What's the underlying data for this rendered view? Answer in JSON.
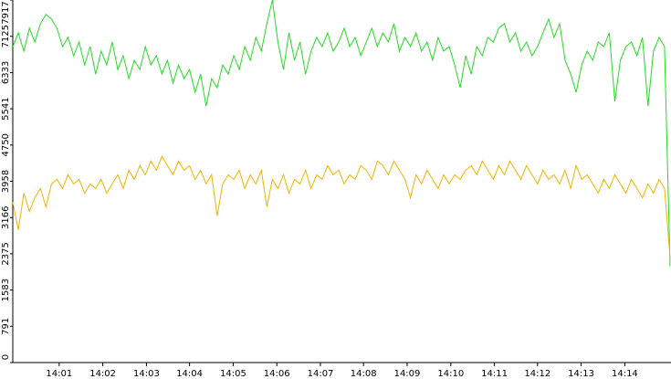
{
  "chart_data": {
    "type": "line",
    "xlim": [
      0,
      119
    ],
    "xticks": [
      {
        "value": 8.4,
        "label": "14:01"
      },
      {
        "value": 16.3,
        "label": "14:02"
      },
      {
        "value": 24.2,
        "label": "14:03"
      },
      {
        "value": 32.0,
        "label": "14:04"
      },
      {
        "value": 39.9,
        "label": "14:05"
      },
      {
        "value": 47.8,
        "label": "14:06"
      },
      {
        "value": 55.7,
        "label": "14:07"
      },
      {
        "value": 63.5,
        "label": "14:08"
      },
      {
        "value": 71.4,
        "label": "14:09"
      },
      {
        "value": 79.3,
        "label": "14:10"
      },
      {
        "value": 87.2,
        "label": "14:11"
      },
      {
        "value": 95.0,
        "label": "14:12"
      },
      {
        "value": 102.9,
        "label": "14:13"
      },
      {
        "value": 110.8,
        "label": "14:14"
      }
    ],
    "ylim": [
      0,
      7917
    ],
    "yticks": [
      0,
      791,
      1583,
      2375,
      3166,
      3958,
      4750,
      5541,
      6333,
      7125,
      7917
    ],
    "series": [
      {
        "color": "#22dd22",
        "values": [
          6900,
          7200,
          6800,
          7300,
          7000,
          7400,
          7600,
          7500,
          7300,
          6900,
          7100,
          6700,
          7000,
          6500,
          6900,
          6300,
          6800,
          6500,
          7000,
          6400,
          6700,
          6200,
          6600,
          6400,
          6900,
          6500,
          6700,
          6300,
          6600,
          6100,
          6500,
          6200,
          6400,
          5900,
          6300,
          5600,
          6200,
          6000,
          6500,
          6300,
          6700,
          6400,
          6900,
          6600,
          7100,
          6800,
          7400,
          7917,
          7000,
          6400,
          7200,
          6600,
          7000,
          6300,
          6800,
          7100,
          6900,
          7200,
          6800,
          7000,
          7300,
          6900,
          7100,
          6700,
          7000,
          7300,
          6900,
          7200,
          7000,
          7400,
          6800,
          7100,
          6900,
          7200,
          6800,
          7000,
          6600,
          7100,
          6800,
          6900,
          6500,
          6000,
          6700,
          6300,
          6900,
          6700,
          7100,
          7000,
          7300,
          7400,
          7000,
          7200,
          6800,
          7000,
          6700,
          6900,
          7200,
          7500,
          7100,
          7400,
          6600,
          6300,
          5900,
          6500,
          6800,
          6600,
          7000,
          6900,
          7200,
          5700,
          6600,
          6900,
          7000,
          6700,
          7100,
          5600,
          6800,
          7100,
          6900,
          2100
        ]
      },
      {
        "color": "#f0b400",
        "values": [
          3500,
          2900,
          3700,
          3300,
          3600,
          3800,
          3400,
          3900,
          4000,
          3800,
          4100,
          3900,
          4000,
          3700,
          3900,
          3800,
          4000,
          3700,
          3900,
          4100,
          3800,
          4200,
          4000,
          4300,
          4100,
          4400,
          4200,
          4500,
          4300,
          4100,
          4400,
          4200,
          4300,
          4000,
          4200,
          3900,
          4100,
          3200,
          3900,
          4100,
          4000,
          4200,
          3800,
          4100,
          3900,
          4200,
          3400,
          4000,
          3800,
          4100,
          3700,
          4000,
          3900,
          4200,
          3800,
          4100,
          4000,
          4300,
          4100,
          4200,
          3900,
          4100,
          4000,
          4300,
          4200,
          4000,
          4400,
          4300,
          4100,
          4400,
          4200,
          4000,
          3600,
          4100,
          3900,
          4200,
          4000,
          3800,
          4100,
          3900,
          4100,
          4000,
          4200,
          4300,
          4100,
          4400,
          4200,
          4000,
          4300,
          4100,
          4400,
          4200,
          4000,
          4300,
          4100,
          3900,
          4200,
          4000,
          4100,
          3900,
          4200,
          3800,
          4300,
          4000,
          4100,
          3900,
          3700,
          4000,
          3800,
          4100,
          3900,
          3700,
          4000,
          3800,
          3600,
          3900,
          3700,
          4000,
          3800,
          2300
        ]
      }
    ]
  }
}
